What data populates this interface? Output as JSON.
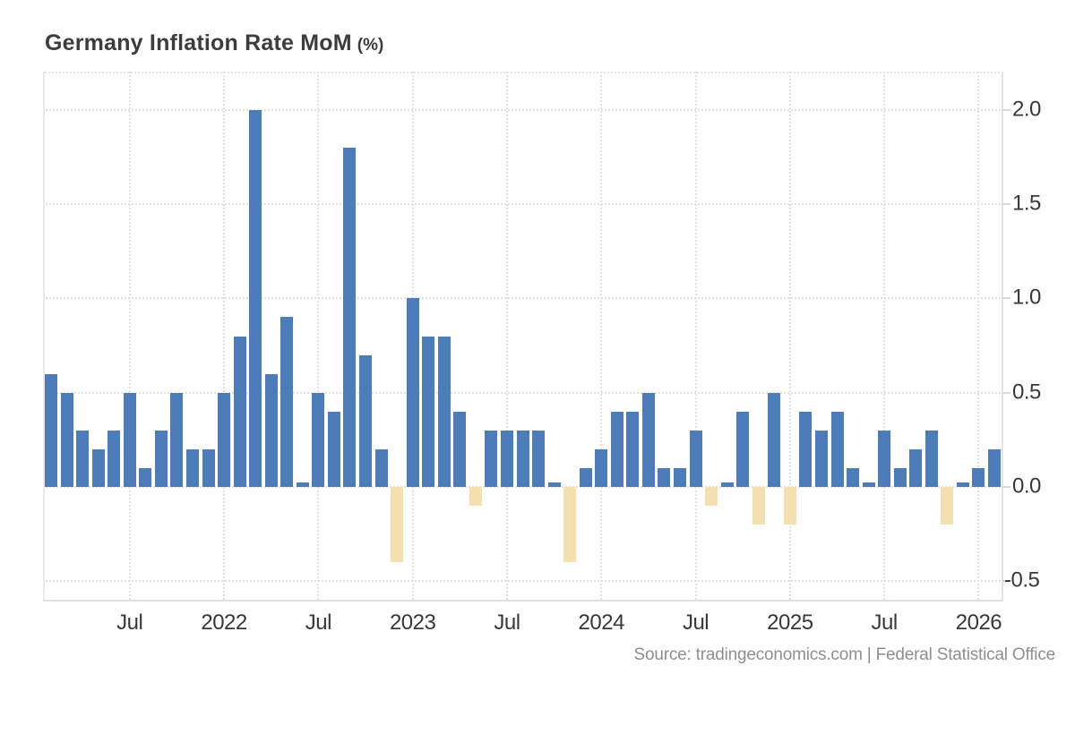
{
  "chart_data": {
    "type": "bar",
    "title": "Germany Inflation Rate MoM",
    "unit_label": "(%)",
    "categories": [
      "Feb 2021",
      "Mar 2021",
      "Apr 2021",
      "May 2021",
      "Jun 2021",
      "Jul 2021",
      "Aug 2021",
      "Sep 2021",
      "Oct 2021",
      "Nov 2021",
      "Dec 2021",
      "Jan 2022",
      "Feb 2022",
      "Mar 2022",
      "Apr 2022",
      "May 2022",
      "Jun 2022",
      "Jul 2022",
      "Aug 2022",
      "Sep 2022",
      "Oct 2022",
      "Nov 2022",
      "Dec 2022",
      "Jan 2023",
      "Feb 2023",
      "Mar 2023",
      "Apr 2023",
      "May 2023",
      "Jun 2023",
      "Jul 2023",
      "Aug 2023",
      "Sep 2023",
      "Oct 2023",
      "Nov 2023",
      "Dec 2023",
      "Jan 2024",
      "Feb 2024",
      "Mar 2024",
      "Apr 2024",
      "May 2024",
      "Jun 2024",
      "Jul 2024",
      "Aug 2024",
      "Sep 2024",
      "Oct 2024",
      "Nov 2024",
      "Dec 2024",
      "Jan 2025",
      "Feb 2025",
      "Mar 2025",
      "Apr 2025",
      "May 2025",
      "Jun 2025",
      "Jul 2025",
      "Aug 2025",
      "Sep 2025",
      "Oct 2025",
      "Nov 2025",
      "Dec 2025",
      "Jan 2026",
      "Feb 2026"
    ],
    "values": [
      0.6,
      0.5,
      0.3,
      0.2,
      0.3,
      0.5,
      0.1,
      0.3,
      0.5,
      0.2,
      0.2,
      0.5,
      0.8,
      2.0,
      0.6,
      0.9,
      0.0,
      0.5,
      0.4,
      1.8,
      0.7,
      0.2,
      -0.4,
      1.0,
      0.8,
      0.8,
      0.4,
      -0.1,
      0.3,
      0.3,
      0.3,
      0.3,
      0.0,
      -0.4,
      0.1,
      0.2,
      0.4,
      0.4,
      0.5,
      0.1,
      0.1,
      0.3,
      -0.1,
      0.0,
      0.4,
      -0.2,
      0.5,
      -0.2,
      0.4,
      0.3,
      0.4,
      0.1,
      0.0,
      0.3,
      0.1,
      0.2,
      0.3,
      -0.2,
      0.0,
      0.1,
      0.2
    ],
    "x_ticks": [
      {
        "index": 5,
        "label": "Jul"
      },
      {
        "index": 11,
        "label": "2022"
      },
      {
        "index": 17,
        "label": "Jul"
      },
      {
        "index": 23,
        "label": "2023"
      },
      {
        "index": 29,
        "label": "Jul"
      },
      {
        "index": 35,
        "label": "2024"
      },
      {
        "index": 41,
        "label": "Jul"
      },
      {
        "index": 47,
        "label": "2025"
      },
      {
        "index": 53,
        "label": "Jul"
      },
      {
        "index": 59,
        "label": "2026"
      }
    ],
    "y_ticks": [
      {
        "value": 2.0,
        "label": "2.0"
      },
      {
        "value": 1.5,
        "label": "1.5"
      },
      {
        "value": 1.0,
        "label": "1.0"
      },
      {
        "value": 0.5,
        "label": "0.5"
      },
      {
        "value": 0.0,
        "label": "0.0"
      },
      {
        "value": -0.5,
        "label": "-0.5"
      }
    ],
    "ylim": [
      -0.6,
      2.2
    ],
    "grid": "dotted",
    "legend": "none",
    "colors": {
      "positive_bar": "#4d7db9",
      "negative_bar": "#f3dfb0",
      "grid": "#e1e1e1",
      "axis": "#e0e0e0",
      "tick_label": "#383838",
      "title": "#3c3c3c",
      "source": "#8f8f8f"
    }
  },
  "source": "Source: tradingeconomics.com | Federal Statistical Office"
}
